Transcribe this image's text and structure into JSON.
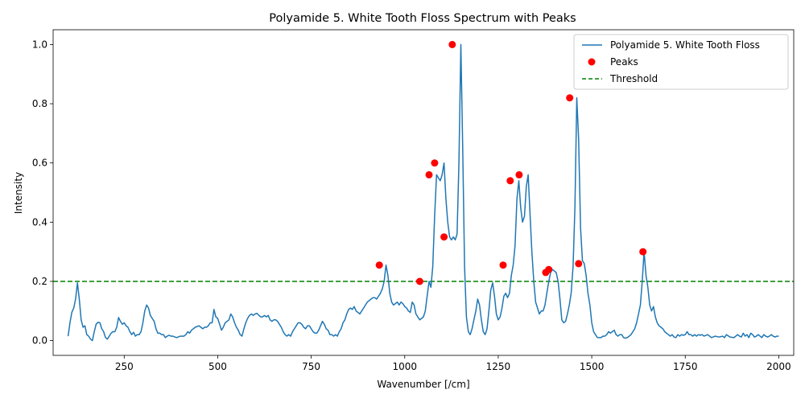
{
  "chart_data": {
    "type": "line",
    "title": "Polyamide 5. White Tooth Floss Spectrum with Peaks",
    "xlabel": "Wavenumber [/cm]",
    "ylabel": "Intensity",
    "xlim": [
      60,
      2040
    ],
    "ylim": [
      -0.05,
      1.05
    ],
    "xticks": [
      250,
      500,
      750,
      1000,
      1250,
      1500,
      1750,
      2000
    ],
    "yticks": [
      0.0,
      0.2,
      0.4,
      0.6,
      0.8,
      1.0
    ],
    "xtick_labels": [
      "250",
      "500",
      "750",
      "1000",
      "1250",
      "1500",
      "1750",
      "2000"
    ],
    "ytick_labels": [
      "0.0",
      "0.2",
      "0.4",
      "0.6",
      "0.8",
      "1.0"
    ],
    "grid": false,
    "legend": {
      "placement": "top-right",
      "entries": [
        "Polyamide 5. White Tooth Floss",
        "Peaks",
        "Threshold"
      ]
    },
    "threshold": {
      "name": "Threshold",
      "y": 0.2,
      "color": "#008000"
    },
    "series": [
      {
        "name": "Polyamide 5. White Tooth Floss",
        "color": "#1f77b4",
        "x": [
          100,
          105,
          110,
          115,
          120,
          125,
          130,
          135,
          140,
          145,
          150,
          155,
          160,
          165,
          170,
          175,
          180,
          185,
          190,
          195,
          200,
          205,
          210,
          215,
          220,
          225,
          230,
          235,
          240,
          245,
          250,
          255,
          260,
          265,
          270,
          275,
          280,
          285,
          290,
          295,
          300,
          305,
          310,
          315,
          320,
          325,
          330,
          335,
          340,
          345,
          350,
          355,
          360,
          365,
          370,
          375,
          380,
          390,
          400,
          410,
          415,
          420,
          425,
          430,
          440,
          450,
          455,
          460,
          465,
          470,
          475,
          480,
          485,
          490,
          495,
          500,
          505,
          510,
          515,
          520,
          525,
          530,
          535,
          540,
          545,
          550,
          555,
          560,
          565,
          570,
          575,
          580,
          585,
          590,
          595,
          600,
          605,
          610,
          615,
          620,
          625,
          630,
          635,
          640,
          645,
          650,
          655,
          660,
          665,
          670,
          675,
          680,
          685,
          690,
          695,
          700,
          705,
          710,
          715,
          720,
          725,
          730,
          735,
          740,
          745,
          750,
          755,
          760,
          765,
          770,
          775,
          780,
          785,
          790,
          795,
          800,
          805,
          810,
          815,
          820,
          825,
          830,
          835,
          840,
          845,
          850,
          855,
          860,
          865,
          870,
          875,
          880,
          885,
          890,
          895,
          900,
          905,
          910,
          915,
          920,
          925,
          930,
          935,
          940,
          945,
          950,
          955,
          960,
          965,
          970,
          975,
          980,
          985,
          990,
          995,
          1000,
          1005,
          1010,
          1015,
          1020,
          1025,
          1030,
          1035,
          1040,
          1045,
          1050,
          1055,
          1060,
          1065,
          1070,
          1075,
          1080,
          1085,
          1090,
          1095,
          1100,
          1105,
          1110,
          1115,
          1120,
          1125,
          1130,
          1135,
          1140,
          1145,
          1150,
          1155,
          1160,
          1165,
          1170,
          1175,
          1180,
          1185,
          1190,
          1195,
          1200,
          1205,
          1210,
          1215,
          1220,
          1225,
          1230,
          1235,
          1240,
          1245,
          1250,
          1255,
          1260,
          1265,
          1270,
          1275,
          1280,
          1285,
          1290,
          1295,
          1300,
          1305,
          1310,
          1315,
          1320,
          1325,
          1330,
          1335,
          1340,
          1345,
          1350,
          1355,
          1360,
          1365,
          1370,
          1375,
          1380,
          1385,
          1390,
          1395,
          1400,
          1405,
          1410,
          1415,
          1420,
          1425,
          1430,
          1435,
          1440,
          1445,
          1450,
          1455,
          1460,
          1465,
          1470,
          1475,
          1480,
          1485,
          1490,
          1495,
          1500,
          1505,
          1510,
          1515,
          1520,
          1525,
          1530,
          1535,
          1540,
          1545,
          1550,
          1555,
          1560,
          1565,
          1570,
          1575,
          1580,
          1585,
          1590,
          1595,
          1600,
          1605,
          1610,
          1615,
          1620,
          1625,
          1630,
          1635,
          1640,
          1645,
          1650,
          1655,
          1660,
          1665,
          1670,
          1675,
          1680,
          1685,
          1690,
          1695,
          1700,
          1705,
          1710,
          1715,
          1720,
          1725,
          1730,
          1735,
          1740,
          1745,
          1750,
          1755,
          1760,
          1765,
          1770,
          1775,
          1780,
          1785,
          1790,
          1795,
          1800,
          1810,
          1820,
          1830,
          1840,
          1850,
          1855,
          1860,
          1870,
          1880,
          1885,
          1890,
          1895,
          1900,
          1905,
          1910,
          1915,
          1920,
          1925,
          1930,
          1935,
          1940,
          1945,
          1950,
          1955,
          1960,
          1965,
          1970,
          1975,
          1980,
          1985,
          1990,
          1995,
          2000
        ],
        "y": [
          0.015,
          0.06,
          0.095,
          0.11,
          0.14,
          0.195,
          0.14,
          0.07,
          0.045,
          0.05,
          0.02,
          0.015,
          0.005,
          0.0,
          0.03,
          0.055,
          0.062,
          0.06,
          0.04,
          0.03,
          0.01,
          0.005,
          0.015,
          0.025,
          0.03,
          0.03,
          0.045,
          0.078,
          0.065,
          0.055,
          0.06,
          0.05,
          0.045,
          0.03,
          0.02,
          0.028,
          0.015,
          0.02,
          0.02,
          0.03,
          0.06,
          0.1,
          0.12,
          0.11,
          0.085,
          0.075,
          0.065,
          0.04,
          0.025,
          0.025,
          0.02,
          0.02,
          0.01,
          0.015,
          0.018,
          0.015,
          0.015,
          0.01,
          0.015,
          0.015,
          0.02,
          0.03,
          0.025,
          0.035,
          0.045,
          0.05,
          0.045,
          0.04,
          0.045,
          0.045,
          0.05,
          0.06,
          0.06,
          0.105,
          0.08,
          0.075,
          0.055,
          0.035,
          0.045,
          0.06,
          0.065,
          0.07,
          0.09,
          0.08,
          0.06,
          0.045,
          0.035,
          0.02,
          0.015,
          0.04,
          0.06,
          0.075,
          0.085,
          0.09,
          0.085,
          0.09,
          0.092,
          0.085,
          0.08,
          0.08,
          0.085,
          0.08,
          0.085,
          0.07,
          0.065,
          0.07,
          0.07,
          0.065,
          0.055,
          0.045,
          0.03,
          0.02,
          0.015,
          0.02,
          0.015,
          0.03,
          0.04,
          0.05,
          0.06,
          0.06,
          0.055,
          0.045,
          0.04,
          0.05,
          0.05,
          0.04,
          0.03,
          0.025,
          0.025,
          0.035,
          0.05,
          0.065,
          0.055,
          0.04,
          0.035,
          0.02,
          0.02,
          0.015,
          0.02,
          0.015,
          0.03,
          0.04,
          0.06,
          0.07,
          0.09,
          0.105,
          0.11,
          0.105,
          0.115,
          0.1,
          0.095,
          0.09,
          0.1,
          0.11,
          0.12,
          0.13,
          0.135,
          0.14,
          0.145,
          0.145,
          0.14,
          0.15,
          0.16,
          0.175,
          0.2,
          0.255,
          0.22,
          0.16,
          0.13,
          0.12,
          0.125,
          0.13,
          0.12,
          0.13,
          0.125,
          0.115,
          0.11,
          0.1,
          0.095,
          0.13,
          0.12,
          0.09,
          0.08,
          0.07,
          0.075,
          0.08,
          0.1,
          0.15,
          0.2,
          0.18,
          0.25,
          0.42,
          0.56,
          0.55,
          0.54,
          0.56,
          0.6,
          0.48,
          0.4,
          0.35,
          0.34,
          0.35,
          0.34,
          0.36,
          0.6,
          1.0,
          0.65,
          0.25,
          0.08,
          0.03,
          0.02,
          0.04,
          0.07,
          0.1,
          0.14,
          0.12,
          0.07,
          0.03,
          0.02,
          0.04,
          0.1,
          0.17,
          0.195,
          0.15,
          0.09,
          0.07,
          0.08,
          0.11,
          0.15,
          0.16,
          0.145,
          0.16,
          0.22,
          0.255,
          0.32,
          0.48,
          0.54,
          0.45,
          0.4,
          0.42,
          0.52,
          0.56,
          0.43,
          0.3,
          0.2,
          0.13,
          0.11,
          0.09,
          0.1,
          0.1,
          0.12,
          0.16,
          0.2,
          0.23,
          0.24,
          0.235,
          0.23,
          0.2,
          0.14,
          0.07,
          0.06,
          0.065,
          0.09,
          0.12,
          0.16,
          0.25,
          0.45,
          0.82,
          0.68,
          0.38,
          0.27,
          0.26,
          0.22,
          0.16,
          0.12,
          0.06,
          0.03,
          0.02,
          0.01,
          0.01,
          0.01,
          0.015,
          0.015,
          0.02,
          0.03,
          0.025,
          0.03,
          0.035,
          0.02,
          0.015,
          0.02,
          0.02,
          0.01,
          0.008,
          0.01,
          0.015,
          0.02,
          0.03,
          0.04,
          0.06,
          0.09,
          0.12,
          0.2,
          0.3,
          0.22,
          0.18,
          0.12,
          0.1,
          0.115,
          0.08,
          0.06,
          0.05,
          0.045,
          0.04,
          0.03,
          0.025,
          0.02,
          0.015,
          0.02,
          0.012,
          0.01,
          0.02,
          0.015,
          0.02,
          0.018,
          0.02,
          0.03,
          0.02,
          0.02,
          0.015,
          0.02,
          0.015,
          0.02,
          0.018,
          0.02,
          0.015,
          0.02,
          0.01,
          0.015,
          0.012,
          0.015,
          0.01,
          0.02,
          0.012,
          0.01,
          0.015,
          0.02,
          0.015,
          0.012,
          0.025,
          0.015,
          0.02,
          0.01,
          0.025,
          0.02,
          0.012,
          0.015,
          0.02,
          0.015,
          0.01,
          0.02,
          0.015,
          0.012,
          0.015,
          0.02,
          0.015,
          0.012,
          0.015,
          0.015
        ]
      },
      {
        "name": "Peaks",
        "type": "scatter",
        "color": "#ff0000",
        "x": [
          932,
          1040,
          1065,
          1080,
          1105,
          1127,
          1263,
          1282,
          1306,
          1377,
          1385,
          1441,
          1465,
          1637
        ],
        "y": [
          0.255,
          0.2,
          0.56,
          0.6,
          0.35,
          1.0,
          0.255,
          0.54,
          0.56,
          0.23,
          0.24,
          0.82,
          0.26,
          0.3
        ]
      }
    ]
  }
}
